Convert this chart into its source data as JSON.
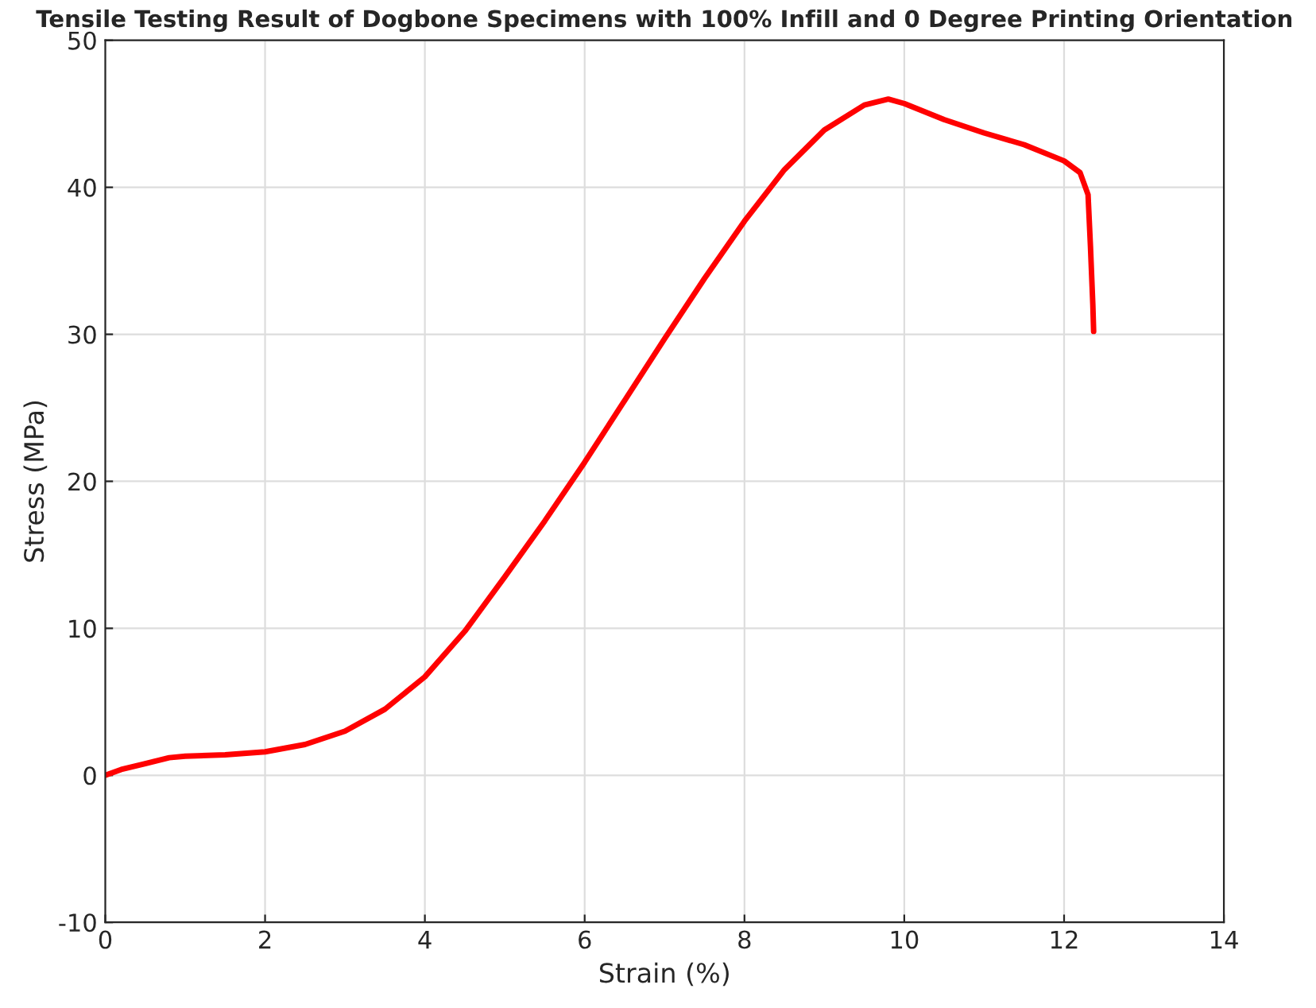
{
  "chart_data": {
    "type": "line",
    "title": "Tensile Testing Result of Dogbone Specimens with 100% Infill and 0 Degree Printing Orientation",
    "xlabel": "Strain (%)",
    "ylabel": "Stress (MPa)",
    "series": [
      {
        "color": "#ff0000",
        "x": [
          0,
          0.2,
          0.5,
          0.8,
          1.0,
          1.5,
          2.0,
          2.5,
          3.0,
          3.5,
          4.0,
          4.5,
          5.0,
          5.5,
          6.0,
          6.5,
          7.0,
          7.5,
          8.0,
          8.5,
          9.0,
          9.5,
          9.8,
          10.0,
          10.5,
          11.0,
          11.5,
          12.0,
          12.2,
          12.3,
          12.33,
          12.36,
          12.37
        ],
        "values": [
          0,
          0.4,
          0.8,
          1.2,
          1.3,
          1.4,
          1.6,
          2.1,
          3.0,
          4.5,
          6.7,
          9.8,
          13.5,
          17.3,
          21.3,
          25.5,
          29.7,
          33.8,
          37.7,
          41.2,
          43.9,
          45.6,
          46.0,
          45.7,
          44.6,
          43.7,
          42.9,
          41.8,
          41.0,
          39.5,
          36,
          32,
          30.2
        ]
      }
    ],
    "xlim": [
      0,
      14
    ],
    "ylim": [
      -10,
      50
    ],
    "xticks": [
      0,
      2,
      4,
      6,
      8,
      10,
      12,
      14
    ],
    "yticks": [
      -10,
      0,
      10,
      20,
      30,
      40,
      50
    ],
    "grid": true,
    "legend": false,
    "marker": "none",
    "line_style": "solid"
  }
}
